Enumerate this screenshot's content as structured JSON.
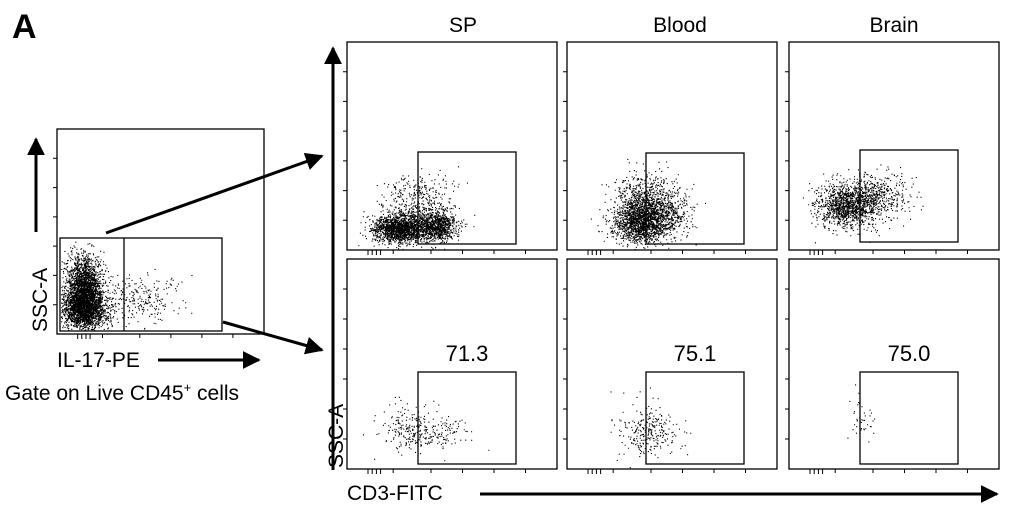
{
  "panel_label": "A",
  "gating_plot": {
    "y_axis_label": "SSC-A",
    "x_axis_label": "IL-17-PE",
    "caption_prefix": "Gate on Live CD45",
    "caption_superscript": "+",
    "caption_suffix": " cells"
  },
  "columns": [
    "SP",
    "Blood",
    "Brain"
  ],
  "grid": {
    "y_axis_label": "SSC-A",
    "x_axis_label": "CD3-FITC"
  },
  "bottom_row_gate_percentages": [
    "71.3",
    "75.1",
    "75.0"
  ],
  "colors": {
    "ink": "#000000",
    "background": "#ffffff"
  }
}
